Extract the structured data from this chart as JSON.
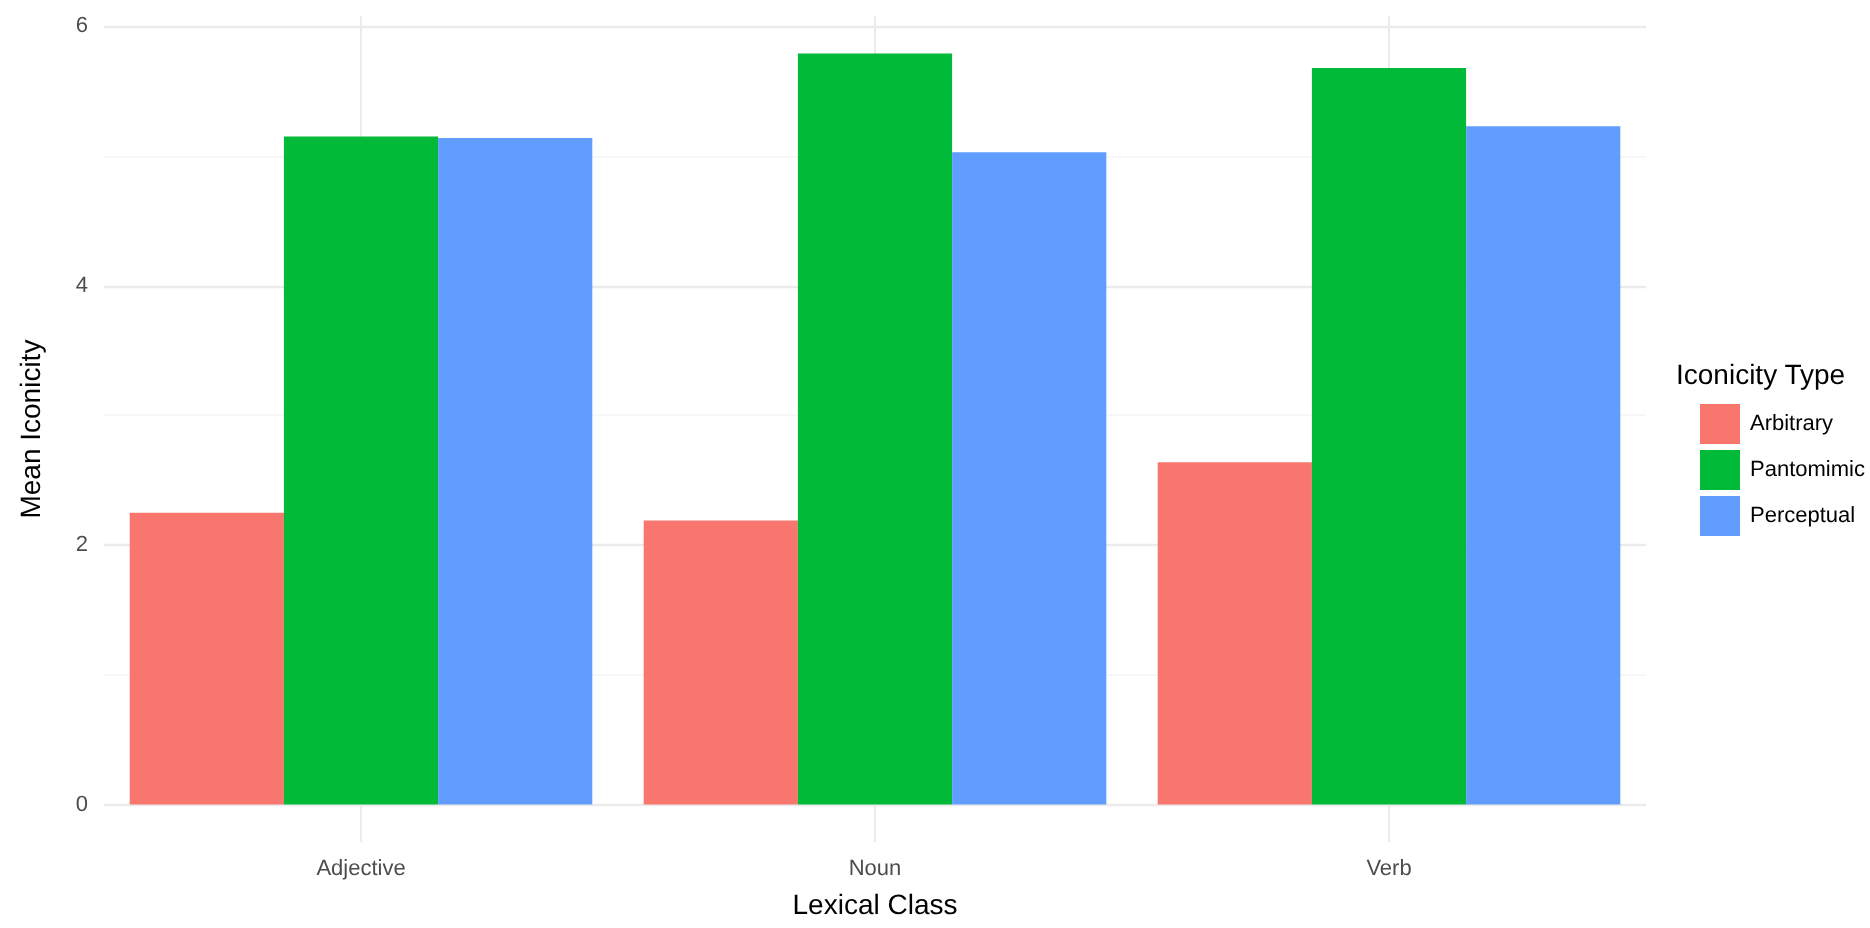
{
  "chart_data": {
    "type": "bar",
    "xlabel": "Lexical Class",
    "ylabel": "Mean Iconicity",
    "legend_title": "Iconicity Type",
    "categories": [
      "Adjective",
      "Noun",
      "Verb"
    ],
    "series": [
      {
        "name": "Arbitrary",
        "color": "#f8766d",
        "values": [
          2.25,
          2.19,
          2.64
        ]
      },
      {
        "name": "Pantomimic",
        "color": "#00ba38",
        "values": [
          5.15,
          5.79,
          5.68
        ]
      },
      {
        "name": "Perceptual",
        "color": "#619cff",
        "values": [
          5.14,
          5.03,
          5.23
        ]
      }
    ],
    "ylim": [
      -0.29,
      6.08
    ],
    "yticks": [
      0,
      2,
      4,
      6
    ],
    "grid": true,
    "legend": "right"
  }
}
